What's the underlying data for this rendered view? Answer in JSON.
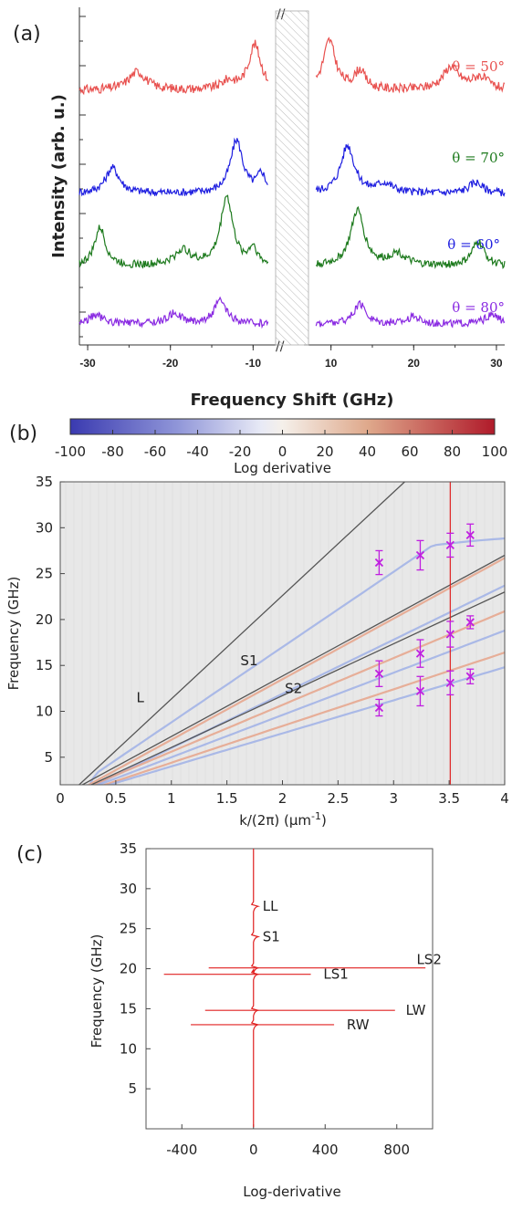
{
  "chart_data": [
    {
      "panel": "(a)",
      "type": "line",
      "xlabel": "Frequency Shift (GHz)",
      "ylabel": "Intensity (arb. u.)",
      "x_ticks": [
        "-30",
        "-20",
        "-10",
        "10",
        "20",
        "30"
      ],
      "x_ranges": [
        [
          -31,
          -7.5
        ],
        [
          7.5,
          31
        ]
      ],
      "gap": [
        -7.5,
        7.5
      ],
      "series": [
        {
          "name": "θ = 50°",
          "color": "#e8514f",
          "offset": 3,
          "peaks": [
            {
              "x": -9.8,
              "h": 1.1,
              "w": 0.9
            },
            {
              "x": -24,
              "h": 0.45,
              "w": 1.3
            },
            {
              "x": -13,
              "h": 0.2,
              "w": 1.0
            },
            {
              "x": 9.8,
              "h": 1.2,
              "w": 0.9
            },
            {
              "x": 13.5,
              "h": 0.45,
              "w": 0.8
            },
            {
              "x": 24.5,
              "h": 0.55,
              "w": 1.2
            },
            {
              "x": 28,
              "h": 0.3,
              "w": 1.2
            }
          ]
        },
        {
          "name": "θ = 60°",
          "color": "#1f1fe0",
          "offset": 2,
          "peaks": [
            {
              "x": -12,
              "h": 1.45,
              "w": 0.9
            },
            {
              "x": -27,
              "h": 0.7,
              "w": 1.0
            },
            {
              "x": -9,
              "h": 0.5,
              "w": 0.6
            },
            {
              "x": 12,
              "h": 1.3,
              "w": 1.0
            },
            {
              "x": 27.5,
              "h": 0.3,
              "w": 1.0
            },
            {
              "x": 16.5,
              "h": 0.25,
              "w": 1.2
            }
          ]
        },
        {
          "name": "θ = 70°",
          "color": "#1d7a1d",
          "offset": 1,
          "peaks": [
            {
              "x": -13.2,
              "h": 2.0,
              "w": 0.9
            },
            {
              "x": -28.5,
              "h": 1.1,
              "w": 0.8
            },
            {
              "x": -18.5,
              "h": 0.45,
              "w": 1.2
            },
            {
              "x": -10,
              "h": 0.5,
              "w": 0.6
            },
            {
              "x": 13.2,
              "h": 1.6,
              "w": 1.0
            },
            {
              "x": 27.8,
              "h": 0.7,
              "w": 0.9
            },
            {
              "x": 18,
              "h": 0.35,
              "w": 1.2
            }
          ]
        },
        {
          "name": "θ = 80°",
          "color": "#8a2be2",
          "offset": 0,
          "peaks": [
            {
              "x": -14,
              "h": 0.65,
              "w": 0.9
            },
            {
              "x": -19.5,
              "h": 0.3,
              "w": 1.0
            },
            {
              "x": -29,
              "h": 0.25,
              "w": 1.0
            },
            {
              "x": 13.5,
              "h": 0.55,
              "w": 0.9
            },
            {
              "x": 20,
              "h": 0.2,
              "w": 1.0
            },
            {
              "x": 29.5,
              "h": 0.25,
              "w": 1.0
            }
          ]
        }
      ]
    },
    {
      "panel": "(b)",
      "type": "heatmap",
      "colorbar_label": "Log derivative",
      "colorbar_ticks": [
        "-100",
        "-80",
        "-60",
        "-40",
        "-20",
        "0",
        "20",
        "40",
        "60",
        "80",
        "100"
      ],
      "colorbar_range": [
        -100,
        100
      ],
      "xlabel": "k/(2π) (μm",
      "xlabel_sup": "-1",
      "xlabel_end": ")",
      "ylabel": "Frequency (GHz)",
      "xlim": [
        0,
        4
      ],
      "ylim": [
        2,
        35
      ],
      "x_ticks": [
        "0",
        "0.5",
        "1",
        "1.5",
        "2",
        "2.5",
        "3",
        "3.5",
        "4"
      ],
      "y_ticks": [
        "5",
        "10",
        "15",
        "20",
        "25",
        "30",
        "35"
      ],
      "vertical_line_k": 3.51,
      "lines": [
        {
          "label": "L",
          "points": [
            [
              0.17,
              2
            ],
            [
              3.1,
              35
            ]
          ]
        },
        {
          "label": "S1",
          "points": [
            [
              0.2,
              2
            ],
            [
              4,
              27
            ]
          ]
        },
        {
          "label": "S2",
          "points": [
            [
              0.28,
              2
            ],
            [
              4,
              23
            ]
          ]
        }
      ],
      "line_labels": [
        {
          "text": "L",
          "x": 0.72,
          "y": 11
        },
        {
          "text": "S1",
          "x": 1.7,
          "y": 15
        },
        {
          "text": "S2",
          "x": 2.1,
          "y": 12
        }
      ],
      "points": [
        {
          "x": 2.87,
          "y": 26.2,
          "err": 1.3
        },
        {
          "x": 2.87,
          "y": 14.1,
          "err": 1.4
        },
        {
          "x": 2.87,
          "y": 10.4,
          "err": 0.9
        },
        {
          "x": 3.24,
          "y": 27.0,
          "err": 1.6
        },
        {
          "x": 3.24,
          "y": 16.3,
          "err": 1.5
        },
        {
          "x": 3.24,
          "y": 12.2,
          "err": 1.6
        },
        {
          "x": 3.51,
          "y": 28.1,
          "err": 1.3
        },
        {
          "x": 3.51,
          "y": 18.4,
          "err": 1.4
        },
        {
          "x": 3.51,
          "y": 13.1,
          "err": 1.3
        },
        {
          "x": 3.69,
          "y": 29.2,
          "err": 1.2
        },
        {
          "x": 3.69,
          "y": 19.7,
          "err": 0.7
        },
        {
          "x": 3.69,
          "y": 13.8,
          "err": 0.8
        }
      ]
    },
    {
      "panel": "(c)",
      "type": "line",
      "xlabel": "Log-derivative",
      "ylabel": "Frequency (GHz)",
      "xlim": [
        -600,
        1000
      ],
      "ylim": [
        0,
        35
      ],
      "x_ticks": [
        "-400",
        "0",
        "400",
        "800"
      ],
      "y_ticks": [
        "5",
        "10",
        "15",
        "20",
        "25",
        "30",
        "35"
      ],
      "resonances": [
        {
          "label": "RW",
          "y": 13.0,
          "left": -350,
          "right": 450
        },
        {
          "label": "LW",
          "y": 14.8,
          "left": -270,
          "right": 790
        },
        {
          "label": "LS1",
          "y": 19.3,
          "left": -500,
          "right": 320
        },
        {
          "label": "LS2",
          "y": 20.1,
          "left": -250,
          "right": 960
        },
        {
          "label": "S1",
          "y": 24.0,
          "left": -5,
          "right": 10
        },
        {
          "label": "LL",
          "y": 27.8,
          "left": -15,
          "right": 10
        }
      ]
    }
  ],
  "panel_labels": [
    "(a)",
    "(b)",
    "(c)"
  ],
  "colors": {
    "vline": "#e02020",
    "points": "#c020e0",
    "lines": "#555555",
    "panel_c_curve": "#e02020"
  }
}
